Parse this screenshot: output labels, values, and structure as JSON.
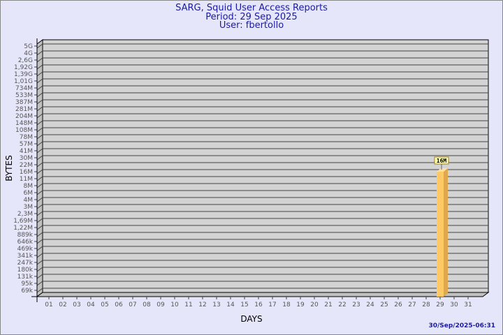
{
  "header": {
    "title": "SARG, Squid User Access Reports",
    "period": "Period: 29 Sep 2025",
    "user": "User: fbertollo"
  },
  "footer": {
    "timestamp": "30/Sep/2025-06:31"
  },
  "colors": {
    "background": "#e6e6fa",
    "plot": "#d3d3d3",
    "bar": "#ffc966",
    "bar_side": "#e0a84c",
    "title": "#1a1aa6"
  },
  "chart_data": {
    "type": "bar",
    "xlabel": "DAYS",
    "ylabel": "BYTES",
    "y_scale": "log",
    "y_ticks": [
      "5G",
      "4G",
      "2,6G",
      "1,92G",
      "1,39G",
      "1,01G",
      "734M",
      "533M",
      "387M",
      "281M",
      "204M",
      "148M",
      "108M",
      "78M",
      "57M",
      "41M",
      "30M",
      "22M",
      "16M",
      "11M",
      "8M",
      "6M",
      "4M",
      "3M",
      "2,3M",
      "1,69M",
      "1,22M",
      "889k",
      "646k",
      "469k",
      "341k",
      "247k",
      "180k",
      "131k",
      "95k",
      "69k"
    ],
    "categories": [
      "01",
      "02",
      "03",
      "04",
      "05",
      "06",
      "07",
      "08",
      "09",
      "10",
      "11",
      "12",
      "13",
      "14",
      "15",
      "16",
      "17",
      "18",
      "19",
      "20",
      "21",
      "22",
      "23",
      "24",
      "25",
      "26",
      "27",
      "28",
      "29",
      "30",
      "31"
    ],
    "bars": [
      {
        "day": "29",
        "value": "16M"
      }
    ],
    "grid": true
  }
}
